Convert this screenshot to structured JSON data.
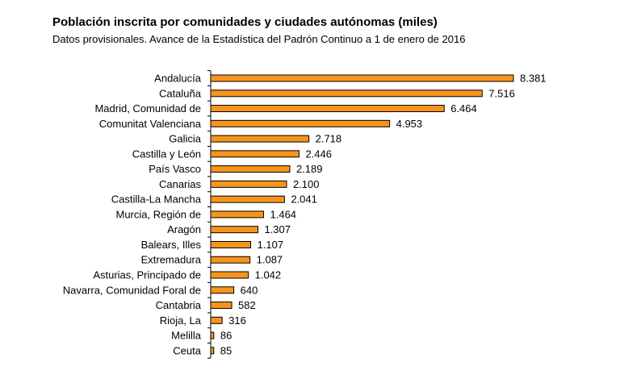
{
  "title": "Población inscrita por comunidades y ciudades autónomas (miles)",
  "subtitle": "Datos provisionales. Avance de la Estadística del Padrón Continuo a 1 de enero de 2016",
  "colors": {
    "bar_fill": "#F7941D",
    "bar_stroke": "#000000",
    "axis": "#000000"
  },
  "chart_data": {
    "type": "bar",
    "orientation": "horizontal",
    "categories": [
      "Andalucía",
      "Cataluña",
      "Madrid, Comunidad de",
      "Comunitat Valenciana",
      "Galicia",
      "Castilla y León",
      "País Vasco",
      "Canarias",
      "Castilla-La Mancha",
      "Murcia, Región de",
      "Aragón",
      "Balears, Illes",
      "Extremadura",
      "Asturias, Principado de",
      "Navarra, Comunidad Foral de",
      "Cantabria",
      "Rioja, La",
      "Melilla",
      "Ceuta"
    ],
    "values": [
      8381,
      7516,
      6464,
      4953,
      2718,
      2446,
      2189,
      2100,
      2041,
      1464,
      1307,
      1107,
      1087,
      1042,
      640,
      582,
      316,
      86,
      85
    ],
    "value_labels": [
      "8.381",
      "7.516",
      "6.464",
      "4.953",
      "2.718",
      "2.446",
      "2.189",
      "2.100",
      "2.041",
      "1.464",
      "1.307",
      "1.107",
      "1.087",
      "1.042",
      "640",
      "582",
      "316",
      "86",
      "85"
    ],
    "xlabel": "",
    "ylabel": "",
    "xlim": [
      0,
      8381
    ],
    "grid": false,
    "legend": "none"
  }
}
